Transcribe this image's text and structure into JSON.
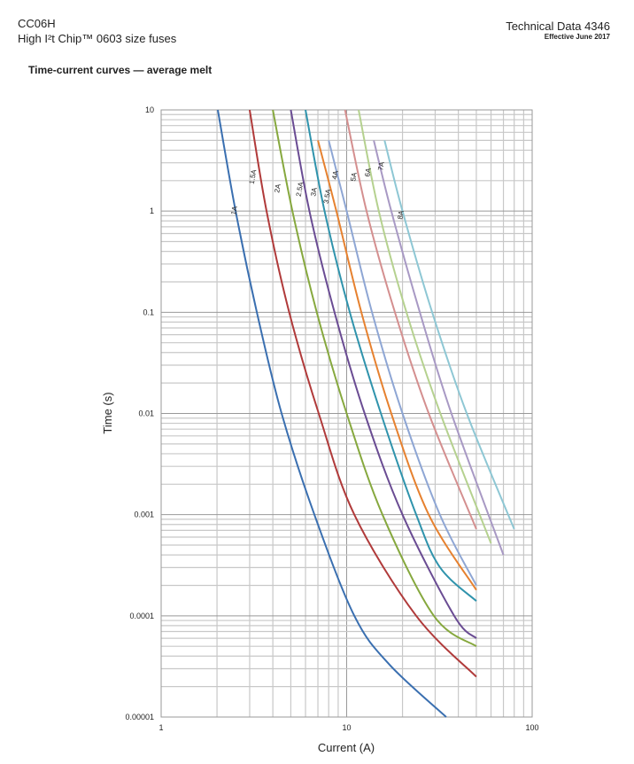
{
  "header": {
    "product": "CC06H",
    "subtitle": "High I²t Chip™ 0603 size fuses",
    "doc": "Technical Data 4346",
    "effective": "Effective June 2017"
  },
  "chart_data": {
    "type": "line",
    "title": "Time-current curves — average melt",
    "xlabel": "Current (A)",
    "ylabel": "Time (s)",
    "xscale": "log",
    "yscale": "log",
    "xlim": [
      1,
      100
    ],
    "ylim": [
      1e-05,
      10
    ],
    "grid": true,
    "x_ticks": [
      "1",
      "10",
      "100"
    ],
    "y_ticks": [
      "10",
      "1",
      "0.1",
      "0.01",
      "0.001",
      "0.0001",
      "0.00001"
    ],
    "series": [
      {
        "name": "1A",
        "color": "#3a6fb0",
        "points": [
          [
            2.02,
            10
          ],
          [
            2.52,
            1
          ],
          [
            3.28,
            0.1
          ],
          [
            4.46,
            0.01
          ],
          [
            6.7,
            0.001
          ],
          [
            11,
            0.0001
          ],
          [
            17,
            3.3e-05
          ],
          [
            34.4,
            1e-05
          ]
        ]
      },
      {
        "name": "1.5A",
        "color": "#b03a3a",
        "points": [
          [
            3.0,
            10
          ],
          [
            3.7,
            1
          ],
          [
            4.9,
            0.1
          ],
          [
            7.07,
            0.01
          ],
          [
            11,
            0.001
          ],
          [
            23.7,
            0.0001
          ],
          [
            50,
            2.5e-05
          ]
        ]
      },
      {
        "name": "2A",
        "color": "#86a83e",
        "points": [
          [
            4.0,
            10
          ],
          [
            5.1,
            1
          ],
          [
            6.9,
            0.1
          ],
          [
            10,
            0.01
          ],
          [
            15.6,
            0.001
          ],
          [
            29.5,
            0.0001
          ],
          [
            50,
            5e-05
          ]
        ]
      },
      {
        "name": "2.5A",
        "color": "#6a4c93",
        "points": [
          [
            5.0,
            10
          ],
          [
            6.3,
            1
          ],
          [
            8.6,
            0.1
          ],
          [
            12.5,
            0.01
          ],
          [
            20,
            0.001
          ],
          [
            38,
            0.0001
          ],
          [
            50,
            6e-05
          ]
        ]
      },
      {
        "name": "3A",
        "color": "#2f93ac",
        "points": [
          [
            6.0,
            10
          ],
          [
            7.6,
            1
          ],
          [
            10.4,
            0.1
          ],
          [
            15.3,
            0.01
          ],
          [
            23.7,
            0.001
          ],
          [
            31.9,
            0.0003
          ],
          [
            50,
            0.00014
          ]
        ]
      },
      {
        "name": "3.5A",
        "color": "#e6812f",
        "points": [
          [
            7.0,
            5
          ],
          [
            8.8,
            1
          ],
          [
            12,
            0.1
          ],
          [
            17.4,
            0.01
          ],
          [
            27.7,
            0.001
          ],
          [
            50,
            0.00018
          ]
        ]
      },
      {
        "name": "4A",
        "color": "#8ea6d4",
        "points": [
          [
            8.0,
            5
          ],
          [
            10,
            1
          ],
          [
            13.7,
            0.1
          ],
          [
            20,
            0.01
          ],
          [
            31.8,
            0.001
          ],
          [
            50,
            0.0002
          ]
        ]
      },
      {
        "name": "5A",
        "color": "#d48f8f",
        "points": [
          [
            9.8,
            10
          ],
          [
            12.8,
            1
          ],
          [
            18.2,
            0.1
          ],
          [
            27.7,
            0.01
          ],
          [
            50,
            0.00072
          ]
        ]
      },
      {
        "name": "6A",
        "color": "#b5d18f",
        "points": [
          [
            11.6,
            10
          ],
          [
            14.9,
            1
          ],
          [
            21,
            0.1
          ],
          [
            32,
            0.01
          ],
          [
            60,
            0.00052
          ]
        ]
      },
      {
        "name": "7A",
        "color": "#a899c4",
        "points": [
          [
            14,
            5
          ],
          [
            17.4,
            1
          ],
          [
            24.8,
            0.1
          ],
          [
            36.7,
            0.01
          ],
          [
            70,
            0.0004
          ]
        ]
      },
      {
        "name": "8A",
        "color": "#8ec7d4",
        "points": [
          [
            16,
            5
          ],
          [
            20,
            1
          ],
          [
            28.9,
            0.1
          ],
          [
            44.4,
            0.01
          ],
          [
            80,
            0.00072
          ]
        ]
      }
    ]
  }
}
